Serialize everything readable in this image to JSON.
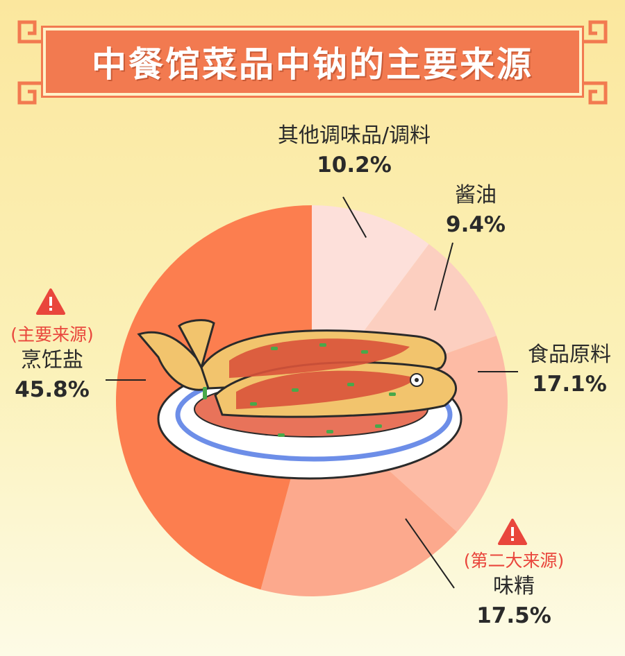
{
  "title": "中餐馆菜品中钠的主要来源",
  "chart_data": {
    "type": "pie",
    "slices": [
      {
        "label": "其他调味品/调料",
        "value": 10.2,
        "display": "10.2%",
        "color": "#fde0da"
      },
      {
        "label": "酱油",
        "value": 9.4,
        "display": "9.4%",
        "color": "#fccfc0"
      },
      {
        "label": "食品原料",
        "value": 17.1,
        "display": "17.1%",
        "color": "#fdbba5"
      },
      {
        "label": "味精",
        "value": 17.5,
        "display": "17.5%",
        "color": "#fca98d",
        "tag": "(第二大来源)"
      },
      {
        "label": "烹饪盐",
        "value": 45.8,
        "display": "45.8%",
        "color": "#fc7e4f",
        "tag": "(主要来源)"
      }
    ]
  },
  "icons": {
    "warning": "warning-triangle-icon",
    "illustration": "braised-fish-plate-icon",
    "corner": "chinese-fret-corner-icon"
  },
  "colors": {
    "banner": "#f27a50",
    "warning": "#e9463c",
    "accent_line": "#222222"
  }
}
